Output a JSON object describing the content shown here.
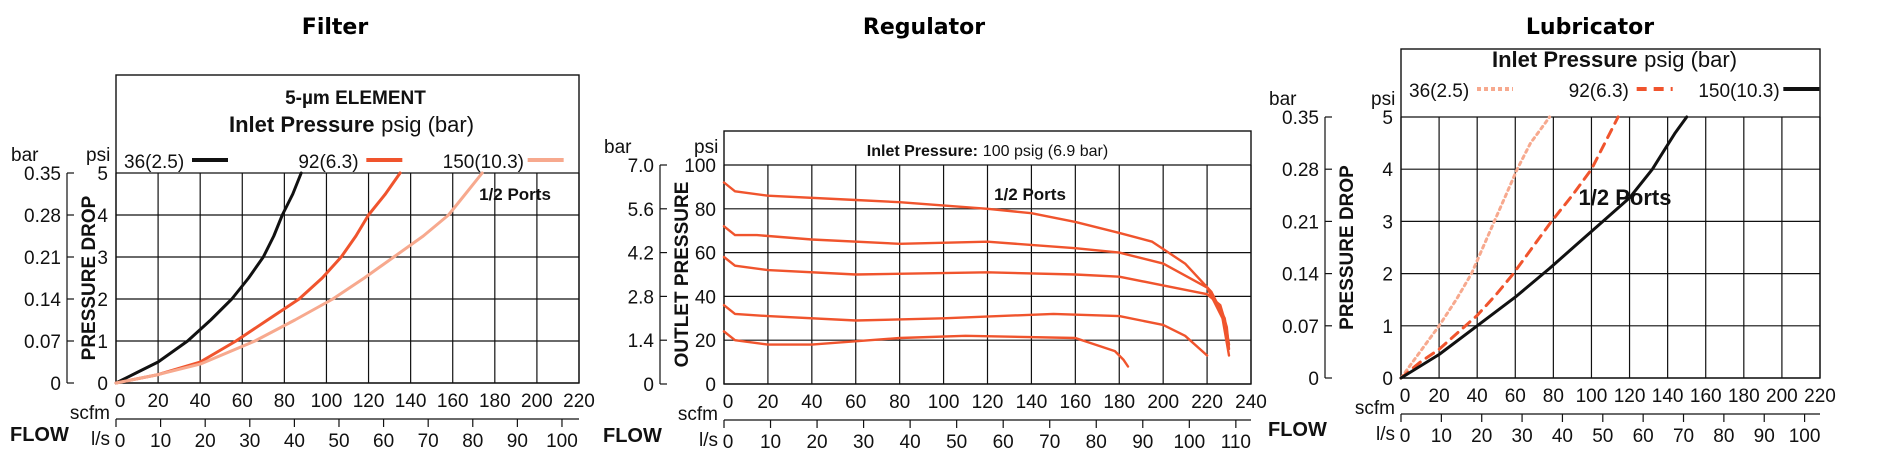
{
  "chart_data": [
    {
      "type": "line",
      "title": "Filter",
      "box_title_1": "5-µm ELEMENT",
      "box_title_2_bold": "Inlet Pressure",
      "box_title_2_rest": " psig (bar)",
      "note": "1/2 Ports",
      "ylabel": "PRESSURE DROP",
      "y_unit_left": "bar",
      "y_unit_right": "psi",
      "xlabel": "FLOW",
      "x_unit_top": "scfm",
      "x_unit_bottom": "l/s",
      "xlim": [
        0,
        220
      ],
      "ylim": [
        0,
        5
      ],
      "x_ticks": [
        "0",
        "20",
        "40",
        "60",
        "80",
        "100",
        "120",
        "140",
        "160",
        "180",
        "200",
        "220"
      ],
      "x2_ticks": [
        "0",
        "10",
        "20",
        "30",
        "40",
        "50",
        "60",
        "70",
        "80",
        "90",
        "100"
      ],
      "y_ticks": [
        "0",
        "1",
        "2",
        "3",
        "4",
        "5"
      ],
      "y2_ticks": [
        "0",
        "0.07",
        "0.14",
        "0.21",
        "0.28",
        "0.35"
      ],
      "grid": true,
      "legend_placement": "top",
      "series": [
        {
          "name": "36(2.5)",
          "color": "#111111",
          "style": "solid",
          "x": [
            0,
            10,
            20,
            34,
            45,
            55,
            63,
            70,
            75,
            79,
            84,
            88
          ],
          "y": [
            0,
            0.25,
            0.5,
            1,
            1.5,
            2,
            2.5,
            3,
            3.5,
            4,
            4.5,
            5
          ]
        },
        {
          "name": "92(6.3)",
          "color": "#f0542d",
          "style": "solid",
          "x": [
            0,
            20,
            40,
            57,
            72,
            87,
            98,
            107,
            114,
            120,
            128,
            135
          ],
          "y": [
            0,
            0.2,
            0.5,
            1,
            1.5,
            2,
            2.5,
            3,
            3.5,
            4,
            4.5,
            5
          ]
        },
        {
          "name": "150(10.3)",
          "color": "#f7a98e",
          "style": "solid",
          "x": [
            0,
            20,
            40,
            66,
            85,
            103,
            118,
            132,
            146,
            158,
            166,
            174
          ],
          "y": [
            0,
            0.2,
            0.45,
            1,
            1.5,
            2,
            2.5,
            3,
            3.5,
            4,
            4.5,
            5
          ]
        }
      ]
    },
    {
      "type": "line",
      "title": "Regulator",
      "box_title_1": "",
      "box_title_2_bold": "Inlet Pressure:",
      "box_title_2_rest": " 100 psig (6.9 bar)",
      "note": "1/2 Ports",
      "ylabel": "OUTLET PRESSURE",
      "y_unit_left": "bar",
      "y_unit_right": "psi",
      "xlabel": "FLOW",
      "x_unit_top": "scfm",
      "x_unit_bottom": "l/s",
      "xlim": [
        0,
        240
      ],
      "ylim": [
        0,
        100
      ],
      "x_ticks": [
        "0",
        "20",
        "40",
        "60",
        "80",
        "100",
        "120",
        "140",
        "160",
        "180",
        "200",
        "220",
        "240"
      ],
      "x2_ticks": [
        "0",
        "10",
        "20",
        "30",
        "40",
        "50",
        "60",
        "70",
        "80",
        "90",
        "100",
        "110"
      ],
      "y_ticks": [
        "0",
        "20",
        "40",
        "60",
        "80",
        "100"
      ],
      "y2_ticks": [
        "0",
        "1.4",
        "2.8",
        "4.2",
        "5.6",
        "7.0"
      ],
      "grid": true,
      "series": [
        {
          "color": "#f0542d",
          "style": "solid",
          "x": [
            0,
            5,
            20,
            60,
            80,
            120,
            140,
            160,
            180,
            195,
            210,
            222,
            228,
            230
          ],
          "y": [
            92,
            88,
            86,
            84,
            83,
            80,
            78,
            74,
            69,
            65,
            55,
            42,
            30,
            18
          ]
        },
        {
          "color": "#f0542d",
          "style": "solid",
          "x": [
            0,
            5,
            15,
            40,
            80,
            120,
            160,
            180,
            200,
            220,
            227,
            230
          ],
          "y": [
            72,
            68,
            68,
            66,
            64,
            65,
            62,
            60,
            55,
            44,
            30,
            13
          ]
        },
        {
          "color": "#f0542d",
          "style": "solid",
          "x": [
            0,
            5,
            20,
            60,
            120,
            160,
            180,
            200,
            220,
            226,
            229,
            230
          ],
          "y": [
            58,
            54,
            52,
            50,
            51,
            50,
            49,
            45,
            41,
            36,
            26,
            16
          ]
        },
        {
          "color": "#f0542d",
          "style": "solid",
          "x": [
            0,
            5,
            20,
            60,
            100,
            150,
            180,
            200,
            210,
            220
          ],
          "y": [
            36,
            32,
            31,
            29,
            30,
            32,
            31,
            27,
            22,
            13
          ]
        },
        {
          "color": "#f0542d",
          "style": "solid",
          "x": [
            0,
            5,
            20,
            40,
            80,
            110,
            160,
            178,
            182,
            184
          ],
          "y": [
            24,
            20,
            18,
            18,
            21,
            22,
            21,
            15,
            11,
            8
          ]
        }
      ]
    },
    {
      "type": "line",
      "title": "Lubricator",
      "box_title_1": "",
      "box_title_2_bold": "Inlet Pressure",
      "box_title_2_rest": " psig (bar)",
      "note": "1/2 Ports",
      "ylabel": "PRESSURE DROP",
      "y_unit_left": "bar",
      "y_unit_right": "psi",
      "xlabel": "FLOW",
      "x_unit_top": "scfm",
      "x_unit_bottom": "l/s",
      "xlim": [
        0,
        220
      ],
      "ylim": [
        0,
        5
      ],
      "x_ticks": [
        "0",
        "20",
        "40",
        "60",
        "80",
        "100",
        "120",
        "140",
        "160",
        "180",
        "200",
        "220"
      ],
      "x2_ticks": [
        "0",
        "10",
        "20",
        "30",
        "40",
        "50",
        "60",
        "70",
        "80",
        "90",
        "100"
      ],
      "y_ticks": [
        "0",
        "1",
        "2",
        "3",
        "4",
        "5"
      ],
      "y2_ticks": [
        "0",
        "0.07",
        "0.14",
        "0.21",
        "0.28",
        "0.35"
      ],
      "grid": true,
      "legend_placement": "top",
      "series": [
        {
          "name": "36(2.5)",
          "color": "#f7a98e",
          "style": "dotted",
          "x": [
            0,
            10,
            20,
            29,
            37,
            43,
            49,
            55,
            61,
            68,
            78
          ],
          "y": [
            0,
            0.5,
            1,
            1.5,
            2,
            2.5,
            3,
            3.5,
            4,
            4.5,
            5
          ]
        },
        {
          "name": "92(6.3)",
          "color": "#f0542d",
          "style": "dashed",
          "x": [
            0,
            10,
            20,
            40,
            50,
            59,
            69,
            79,
            90,
            100,
            107,
            114
          ],
          "y": [
            0,
            0.3,
            0.55,
            1.2,
            1.6,
            2,
            2.5,
            3,
            3.5,
            4,
            4.5,
            5
          ]
        },
        {
          "name": "150(10.3)",
          "color": "#111111",
          "style": "solid",
          "x": [
            0,
            20,
            40,
            60,
            78,
            92,
            106,
            120,
            132,
            138,
            144,
            150
          ],
          "y": [
            0,
            0.45,
            1,
            1.55,
            2.1,
            2.55,
            3,
            3.45,
            4,
            4.35,
            4.7,
            5
          ]
        }
      ]
    }
  ]
}
